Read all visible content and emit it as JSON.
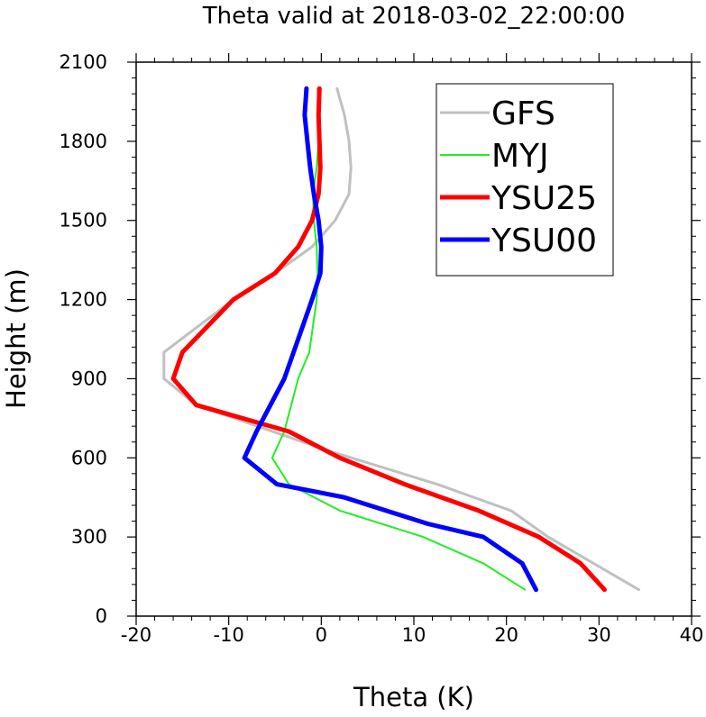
{
  "chart_data": {
    "type": "line",
    "title": "Theta valid at 2018-03-02_22:00:00",
    "xlabel": "Theta (K)",
    "ylabel": "Height (m)",
    "xlim": [
      -20,
      40
    ],
    "ylim": [
      0,
      2100
    ],
    "x_ticks": [
      -20,
      -10,
      0,
      10,
      20,
      30,
      40
    ],
    "y_ticks": [
      0,
      300,
      600,
      900,
      1200,
      1500,
      1800,
      2100
    ],
    "grid": false,
    "legend_position": "top-right",
    "series": [
      {
        "name": "GFS",
        "color": "#c0c0c0",
        "width": 3,
        "points": [
          [
            34.3,
            100
          ],
          [
            24.5,
            300
          ],
          [
            20.5,
            400
          ],
          [
            12.5,
            500
          ],
          [
            0.5,
            630
          ],
          [
            -13.5,
            800
          ],
          [
            -17,
            900
          ],
          [
            -17,
            1000
          ],
          [
            -9.5,
            1200
          ],
          [
            -5,
            1300
          ],
          [
            -1,
            1400
          ],
          [
            1.5,
            1500
          ],
          [
            3,
            1600
          ],
          [
            3.2,
            1700
          ],
          [
            3,
            1800
          ],
          [
            2.5,
            1900
          ],
          [
            1.7,
            2000
          ]
        ]
      },
      {
        "name": "MYJ",
        "color": "#22ee22",
        "width": 2,
        "points": [
          [
            22,
            100
          ],
          [
            17.5,
            200
          ],
          [
            11,
            300
          ],
          [
            2,
            400
          ],
          [
            -3.5,
            500
          ],
          [
            -5.3,
            600
          ],
          [
            -4,
            700
          ],
          [
            -2.5,
            900
          ],
          [
            -1.3,
            1000
          ],
          [
            -0.5,
            1200
          ],
          [
            -0.4,
            1300
          ],
          [
            -0.5,
            1400
          ],
          [
            -0.8,
            1500
          ],
          [
            -0.9,
            1600
          ],
          [
            -0.5,
            1700
          ],
          [
            -0.3,
            1800
          ],
          [
            -0.2,
            1900
          ],
          [
            -0.4,
            2000
          ]
        ]
      },
      {
        "name": "YSU25",
        "color": "#ff0000",
        "width": 5,
        "points": [
          [
            30.6,
            100
          ],
          [
            28,
            200
          ],
          [
            23.5,
            300
          ],
          [
            17,
            400
          ],
          [
            9,
            500
          ],
          [
            2,
            600
          ],
          [
            -3.5,
            700
          ],
          [
            -13.5,
            800
          ],
          [
            -16,
            900
          ],
          [
            -15,
            1000
          ],
          [
            -9.5,
            1200
          ],
          [
            -5,
            1300
          ],
          [
            -2.5,
            1400
          ],
          [
            -1,
            1500
          ],
          [
            -0.3,
            1600
          ],
          [
            -0.1,
            1700
          ],
          [
            -0.2,
            1800
          ],
          [
            -0.3,
            1900
          ],
          [
            -0.2,
            2000
          ]
        ]
      },
      {
        "name": "YSU00",
        "color": "#0000ff",
        "width": 5,
        "points": [
          [
            23.2,
            100
          ],
          [
            21.7,
            200
          ],
          [
            17.5,
            300
          ],
          [
            11.5,
            350
          ],
          [
            2.5,
            450
          ],
          [
            -4.8,
            500
          ],
          [
            -8.3,
            600
          ],
          [
            -7,
            700
          ],
          [
            -5.5,
            800
          ],
          [
            -4,
            900
          ],
          [
            -1,
            1200
          ],
          [
            -0.1,
            1300
          ],
          [
            0,
            1400
          ],
          [
            -0.3,
            1500
          ],
          [
            -0.8,
            1600
          ],
          [
            -1.2,
            1700
          ],
          [
            -1.5,
            1800
          ],
          [
            -1.8,
            1900
          ],
          [
            -1.6,
            2000
          ]
        ]
      }
    ]
  }
}
